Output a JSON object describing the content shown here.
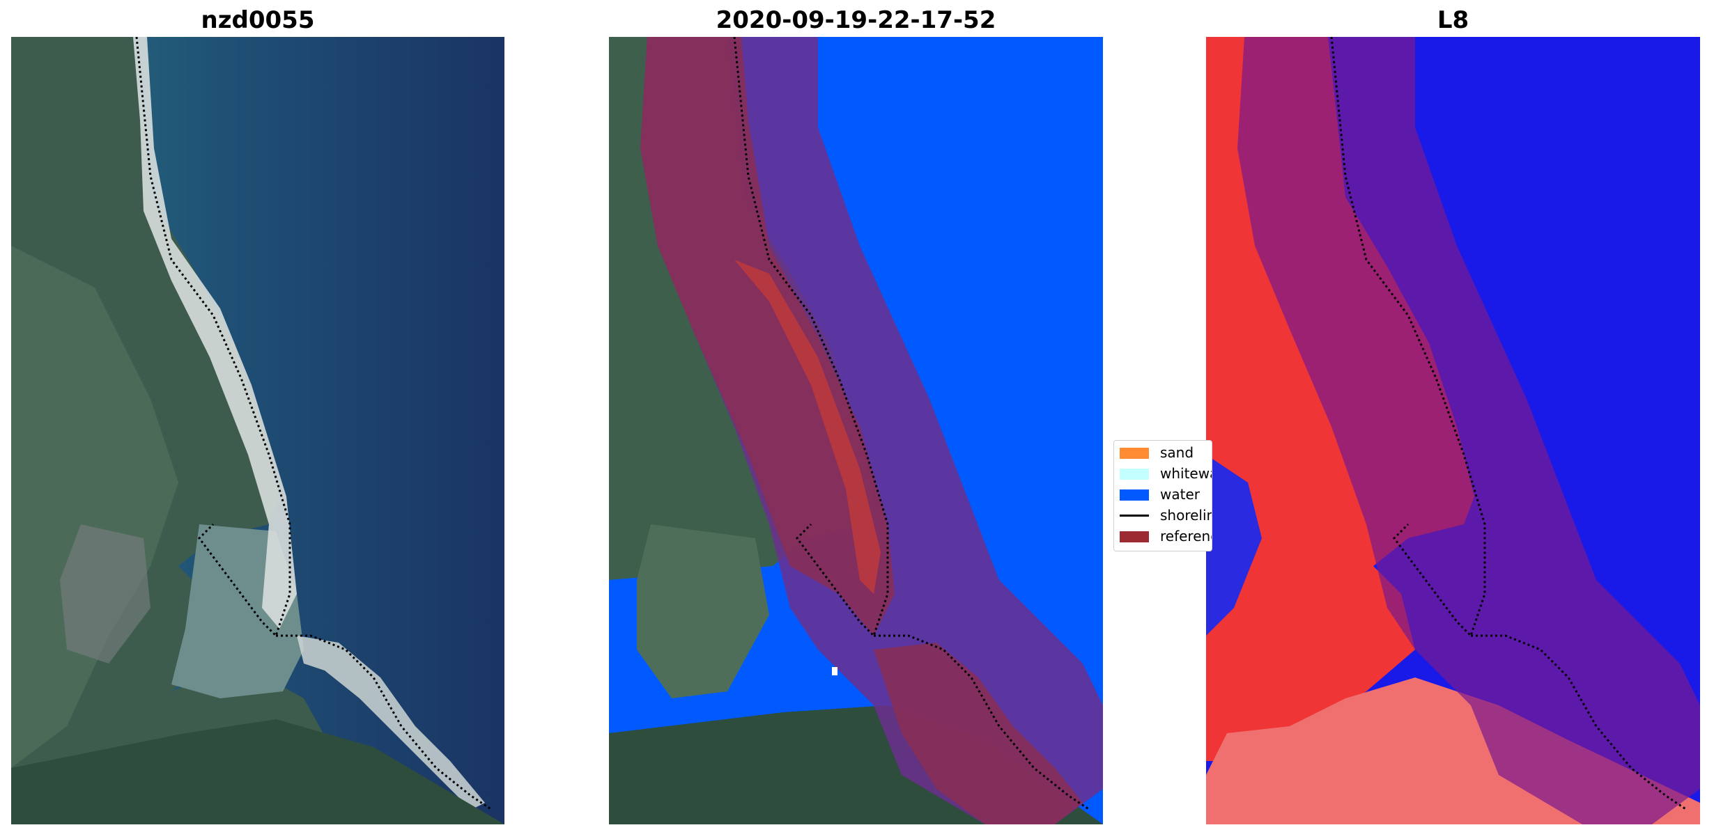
{
  "panels": [
    {
      "title": "nzd0055"
    },
    {
      "title": "2020-09-19-22-17-52"
    },
    {
      "title": "L8"
    }
  ],
  "legend": {
    "items": [
      {
        "label": "sand",
        "color": "#ff8c32",
        "kind": "patch"
      },
      {
        "label": "whitewater",
        "color": "#c3ffff",
        "kind": "patch"
      },
      {
        "label": "water",
        "color": "#005aff",
        "kind": "patch"
      },
      {
        "label": "shoreline",
        "color": "#000000",
        "kind": "line"
      },
      {
        "label": "reference shoreline buffer",
        "color": "#9b2a33",
        "kind": "patch"
      }
    ]
  },
  "colors": {
    "ocean_dark": "#1b3565",
    "ocean_mid": "#2c6d80",
    "land_green": "#3e5f4c",
    "sand": "#d8e0de",
    "water_class": "#005aff",
    "buffer_over_land": "#7a2e55",
    "buffer_over_water": "#4d2694",
    "index_red": "#ef2a2a",
    "index_blue": "#1a1ae8"
  }
}
